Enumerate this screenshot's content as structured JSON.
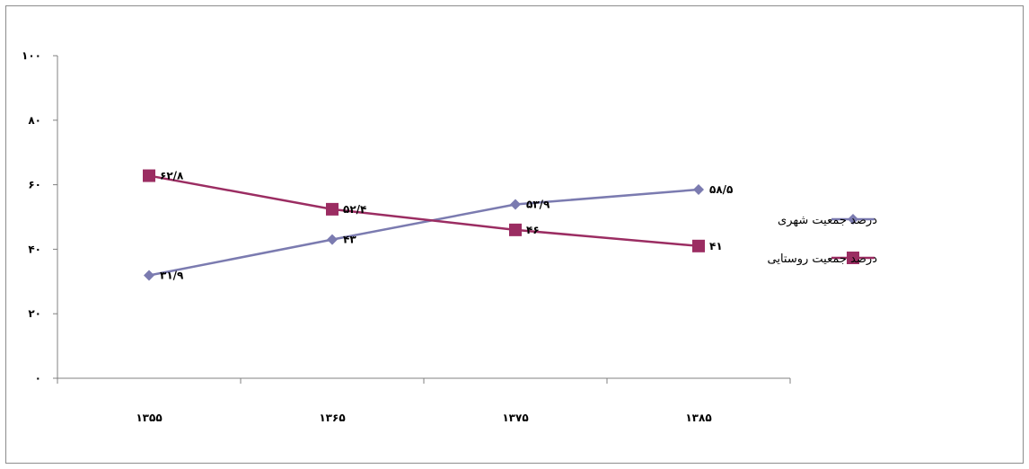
{
  "chart_data": {
    "type": "line",
    "categories": [
      "۱۳۵۵",
      "۱۳۶۵",
      "۱۳۷۵",
      "۱۳۸۵"
    ],
    "ylim": [
      0,
      100
    ],
    "yticks": [
      0,
      20,
      40,
      60,
      80,
      100
    ],
    "ytick_labels": [
      "۰",
      "۲۰",
      "۴۰",
      "۶۰",
      "۸۰",
      "۱۰۰"
    ],
    "grid": false,
    "legend_position": "right",
    "series": [
      {
        "name": "درصد جمعیت شهری",
        "values": [
          31.9,
          43,
          53.9,
          58.5
        ],
        "labels": [
          "۳۱/۹",
          "۴۳",
          "۵۳/۹",
          "۵۸/۵"
        ],
        "color": "#7b7bb0",
        "marker": "diamond"
      },
      {
        "name": "درصد جمعیت روستایی",
        "values": [
          62.8,
          52.4,
          46,
          41
        ],
        "labels": [
          "۶۲/۸",
          "۵۲/۴",
          "۴۶",
          "۴۱"
        ],
        "color": "#9b2d62",
        "marker": "square"
      }
    ]
  }
}
